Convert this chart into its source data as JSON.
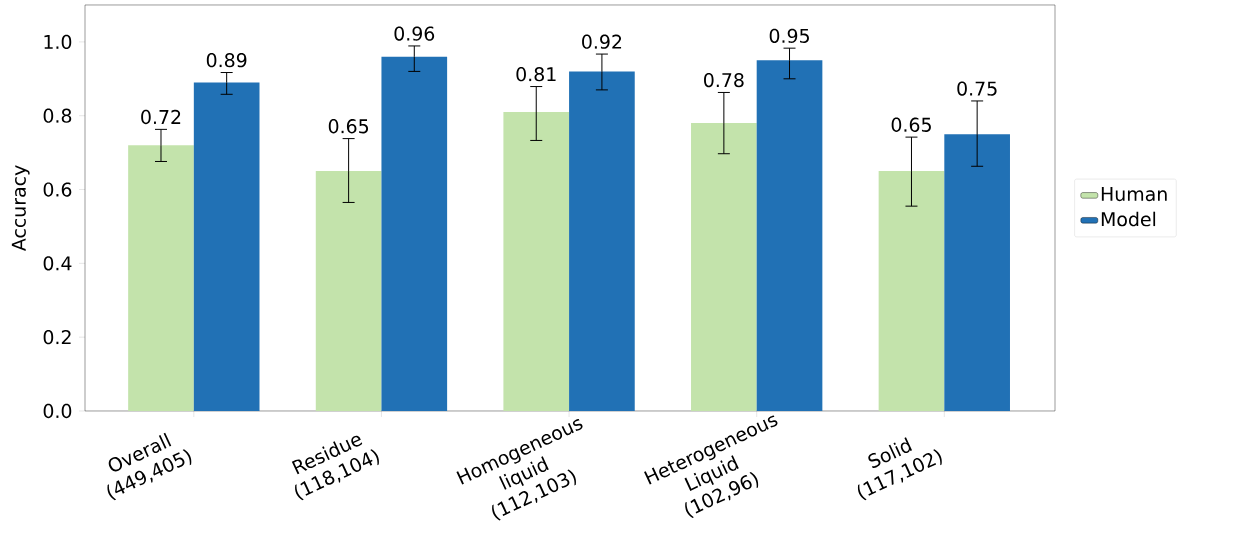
{
  "chart_data": {
    "type": "bar",
    "ylabel": "Accuracy",
    "categories": [
      "Overall (449,405)",
      "Residue (118,104)",
      "Homogeneous liquid (112,103)",
      "Heterogeneous Liquid (102,96)",
      "Solid (117,102)"
    ],
    "series": [
      {
        "name": "Human",
        "color": "#c3e3ab",
        "values": [
          0.72,
          0.65,
          0.81,
          0.78,
          0.65
        ],
        "errors": [
          [
            0.676,
            0.763
          ],
          [
            0.565,
            0.738
          ],
          [
            0.733,
            0.879
          ],
          [
            0.697,
            0.863
          ],
          [
            0.555,
            0.742
          ]
        ]
      },
      {
        "name": "Model",
        "color": "#2171b5",
        "values": [
          0.89,
          0.96,
          0.92,
          0.95,
          0.75
        ],
        "errors": [
          [
            0.858,
            0.917
          ],
          [
            0.92,
            0.989
          ],
          [
            0.87,
            0.967
          ],
          [
            0.9,
            0.983
          ],
          [
            0.663,
            0.84
          ]
        ]
      }
    ],
    "ylim": [
      0,
      1.1
    ],
    "yticks": [
      {
        "value": 0,
        "label": "0.0"
      },
      0.2,
      0.4,
      0.6,
      0.8,
      {
        "value": 1,
        "label": "1.0"
      }
    ],
    "data_labels": true,
    "legend": "right",
    "grid": false
  }
}
